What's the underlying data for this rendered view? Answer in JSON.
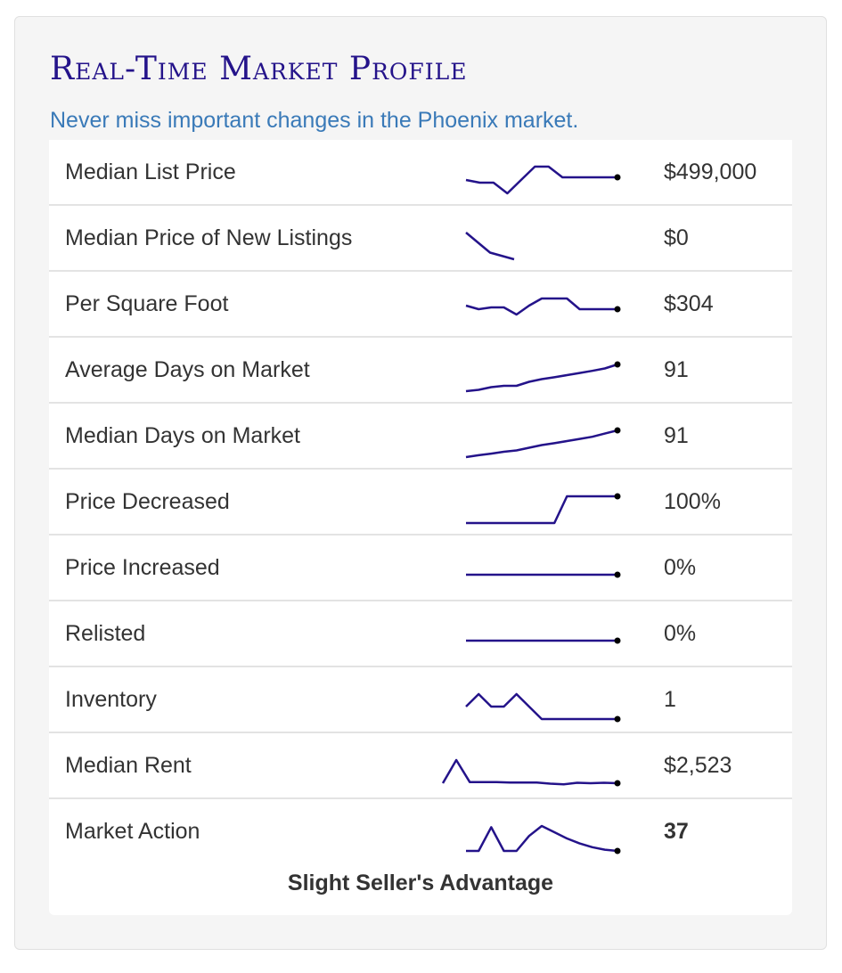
{
  "header": {
    "title": "Real-Time Market Profile",
    "subtitle": "Never miss important changes in the Phoenix market."
  },
  "colors": {
    "title": "#24138a",
    "subtitle": "#3a7ab8",
    "sparkline": "#24138a",
    "text": "#333333"
  },
  "rows": [
    {
      "label": "Median List Price",
      "value": "$499,000",
      "trend": [
        0.5,
        0.4,
        0.4,
        0.0,
        0.5,
        1.0,
        1.0,
        0.6,
        0.6,
        0.6,
        0.6,
        0.6
      ],
      "end_dot": true
    },
    {
      "label": "Median Price of New Listings",
      "value": "$0",
      "trend": [
        1.0,
        0.25,
        0.0
      ],
      "end_dot": false
    },
    {
      "label": "Per Square Foot",
      "value": "$304",
      "trend": [
        0.6,
        0.4,
        0.5,
        0.5,
        0.1,
        0.6,
        1.0,
        1.0,
        1.0,
        0.4,
        0.4,
        0.4,
        0.4
      ],
      "end_dot": true
    },
    {
      "label": "Average Days on Market",
      "value": "91",
      "trend": [
        0.0,
        0.05,
        0.15,
        0.2,
        0.2,
        0.35,
        0.45,
        0.52,
        0.6,
        0.68,
        0.76,
        0.85,
        1.0
      ],
      "end_dot": true
    },
    {
      "label": "Median Days on Market",
      "value": "91",
      "trend": [
        0.0,
        0.07,
        0.13,
        0.2,
        0.25,
        0.35,
        0.45,
        0.52,
        0.6,
        0.68,
        0.76,
        0.88,
        1.0
      ],
      "end_dot": true
    },
    {
      "label": "Price Decreased",
      "value": "100%",
      "trend": [
        0,
        0,
        0,
        0,
        0,
        0,
        0,
        0,
        1,
        1,
        1,
        1,
        1
      ],
      "end_dot": true
    },
    {
      "label": "Price Increased",
      "value": "0%",
      "trend": [
        0.5,
        0.5
      ],
      "end_dot": true
    },
    {
      "label": "Relisted",
      "value": "0%",
      "trend": [
        0.5,
        0.5
      ],
      "end_dot": true
    },
    {
      "label": "Inventory",
      "value": "1",
      "trend": [
        0.5,
        1.0,
        0.5,
        0.5,
        1.0,
        0.5,
        0.0,
        0.0,
        0.0,
        0.0,
        0.0,
        0.0,
        0.0
      ],
      "end_dot": true
    },
    {
      "label": "Median Rent",
      "value": "$2,523",
      "trend": [
        0.0,
        1.0,
        0.05,
        0.05,
        0.05,
        0.03,
        0.03,
        0.03,
        -0.02,
        -0.05,
        0.02,
        0.0,
        0.02,
        0.0
      ],
      "end_dot": true
    },
    {
      "label": "Market Action",
      "value": "37",
      "trend": [
        0.0,
        0.0,
        0.95,
        0.0,
        0.0,
        0.6,
        1.0,
        0.75,
        0.5,
        0.3,
        0.15,
        0.05,
        0.0
      ],
      "end_dot": true
    }
  ],
  "market_action_note": "Slight Seller's Advantage"
}
